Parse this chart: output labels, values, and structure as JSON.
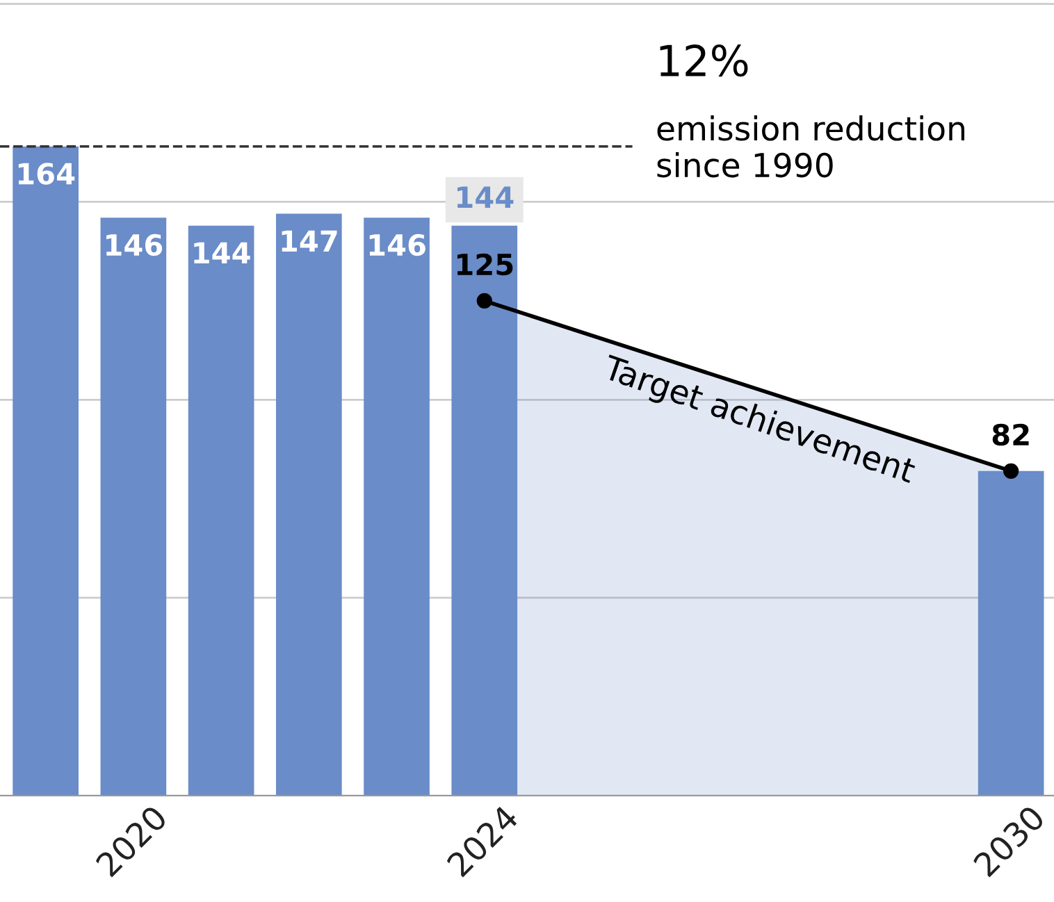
{
  "chart_data": {
    "type": "bar",
    "x": [
      2019,
      2020,
      2021,
      2022,
      2023,
      2024,
      2030
    ],
    "series": [
      {
        "color": "#6a8cc8",
        "values": [
          164,
          146,
          144,
          147,
          146,
          144,
          82
        ],
        "value_labels": [
          "164",
          "146",
          "144",
          "147",
          "146",
          "144",
          null
        ]
      },
      {
        "type": "line",
        "color": "#000000",
        "values": [
          null,
          null,
          null,
          null,
          null,
          125,
          82
        ],
        "marker": "circle",
        "value_labels": [
          null,
          null,
          null,
          null,
          null,
          "125",
          "82"
        ],
        "lower": [
          null,
          null,
          null,
          null,
          null,
          0,
          0
        ],
        "upper": [
          null,
          null,
          null,
          null,
          null,
          125,
          82
        ]
      }
    ],
    "xlim": [
      2018.48,
      2030.49
    ],
    "xticks": [
      2020,
      2024,
      2030
    ],
    "ylim": [
      0,
      201
    ],
    "yticks": [
      {
        "value": 50,
        "label": null
      },
      {
        "value": 100,
        "label": null
      },
      {
        "value": 150,
        "label": null
      },
      {
        "value": 200,
        "label": null
      }
    ],
    "tick_labels": "x",
    "grid": "y",
    "ref_lines": [
      {
        "axis": "y",
        "value": 164,
        "color": "#333333",
        "line_style": "dashed"
      }
    ],
    "annotations": [
      "12%",
      "emission reduction\nsince 1990",
      "Target achievement"
    ]
  }
}
